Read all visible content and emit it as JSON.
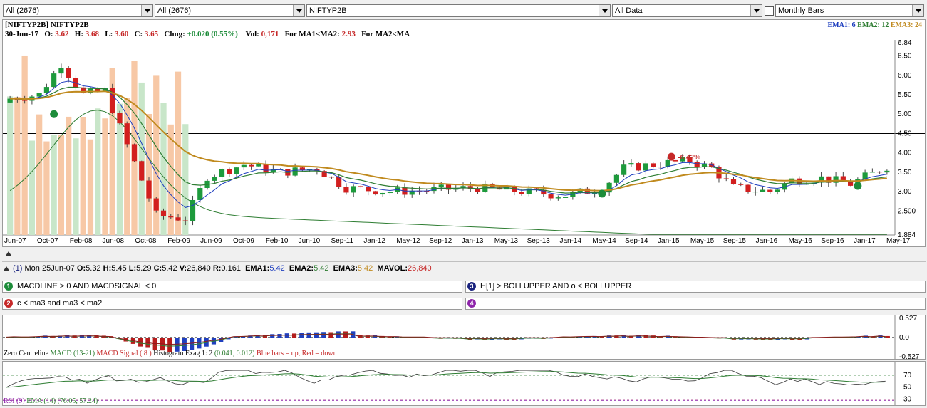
{
  "toolbar": {
    "combo1": "All (2676)",
    "combo2": "All (2676)",
    "combo3": "NIFTYP2B",
    "combo4": "All Data",
    "combo5": "Monthly Bars"
  },
  "chart_header": {
    "symbol": "[NIFTYP2B] NIFTYP2B",
    "date": "30-Jun-17",
    "o_label": "O:",
    "o": "3.62",
    "h_label": "H:",
    "h": "3.68",
    "l_label": "L:",
    "l": "3.60",
    "c_label": "C:",
    "c": "3.65",
    "chng_label": "Chng:",
    "chng": "+0.020 (0.55%)",
    "vol_label": "Vol:",
    "vol": "0,171",
    "ma1_label": "For MA1<MA2:",
    "ma1": "2.93",
    "ma2_label": "For MA2<MA"
  },
  "ema_legend": {
    "ema1": "EMA1: 6",
    "ema2": "EMA2: 12",
    "ema3": "EMA3: 24"
  },
  "colors": {
    "ema1": "#1f3fbf",
    "ema2": "#2e7d32",
    "ema3": "#c08a1e",
    "up": "#1d9a3c",
    "down": "#d21f1f",
    "volume": "#f7c8a6",
    "volume_alt": "#c8e6c9"
  },
  "annotation": {
    "label": "-6.42%"
  },
  "chart_data": [
    {
      "type": "candlestick",
      "x_ticks": [
        "Jun-07",
        "Oct-07",
        "Feb-08",
        "Jun-08",
        "Oct-08",
        "Feb-09",
        "Jun-09",
        "Oct-09",
        "Feb-10",
        "Jun-10",
        "Sep-11",
        "Jan-12",
        "May-12",
        "Sep-12",
        "Jan-13",
        "May-13",
        "Sep-13",
        "Jan-14",
        "May-14",
        "Sep-14",
        "Jan-15",
        "May-15",
        "Sep-15",
        "Jan-16",
        "May-16",
        "Sep-16",
        "Jan-17",
        "May-17"
      ],
      "y_ticks": [
        "6.84",
        "6.50",
        "6.00",
        "5.50",
        "5.00",
        "4.50",
        "4.00",
        "3.50",
        "3.00",
        "2.500",
        "1.884"
      ],
      "ylim": [
        1.884,
        6.84
      ]
    },
    {
      "type": "bar",
      "y_ticks": [
        "0.527",
        "0.0",
        "-0.527"
      ],
      "ylim": [
        -0.527,
        0.527
      ]
    },
    {
      "type": "line",
      "y_ticks": [
        "70",
        "50",
        "30"
      ],
      "ylim": [
        20,
        90
      ]
    }
  ],
  "status": {
    "index": "(1)",
    "date": "Mon 25Jun-07",
    "o_label": "O:",
    "o": "5.32",
    "h_label": "H:",
    "h": "5.45",
    "l_label": "L:",
    "l": "5.29",
    "c_label": "C:",
    "c": "5.42",
    "v_label": "V:",
    "v": "26,840",
    "r_label": "R:",
    "r": "0.161",
    "ema1_label": "EMA1:",
    "ema1": "5.42",
    "ema2_label": "EMA2:",
    "ema2": "5.42",
    "ema3_label": "EMA3:",
    "ema3": "5.42",
    "mavol_label": "MAVOL:",
    "mavol": "26,840"
  },
  "conditions": [
    {
      "num": "1",
      "text": "MACDLINE > 0 AND  MACDSIGNAL < 0",
      "color": "#1d8c3a"
    },
    {
      "num": "2",
      "text": "c < ma3 and ma3 < ma2",
      "color": "#c62828"
    },
    {
      "num": "3",
      "text": "H[1] > BOLLUPPER AND o < BOLLUPPER",
      "color": "#1a237e"
    },
    {
      "num": "4",
      "text": "",
      "color": "#8e24aa"
    }
  ],
  "macd_legend": {
    "zero": "Zero Centreline",
    "macd": "MACD (13-21)",
    "signal": "MACD Signal ( 8 )",
    "hist": "Histogram Exag 1: 2",
    "values": "(0.041, 0.012)",
    "bars": "Blue bars = up, Red = down"
  },
  "rsi_legend": {
    "rsi": "RSI (9)",
    "ema": "EMA (14)",
    "values": "(76.05, 57.24)"
  }
}
